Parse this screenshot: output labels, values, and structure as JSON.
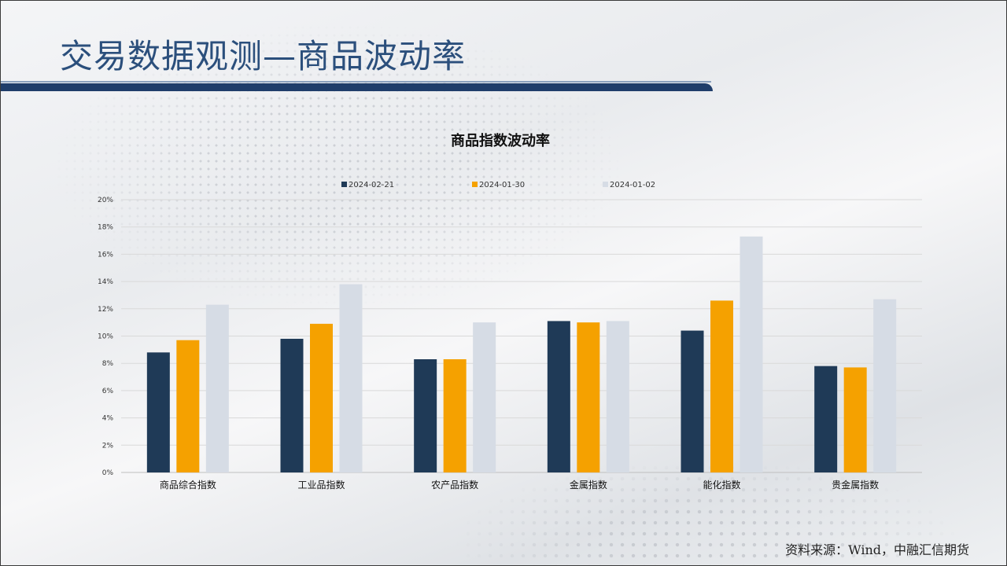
{
  "slide": {
    "title": "交易数据观测—商品波动率",
    "source": "资料来源：Wind，中融汇信期货"
  },
  "colors": {
    "series": [
      "#1f3a57",
      "#f5a100",
      "#d6dce5"
    ],
    "title": "#2b4f7c",
    "title_bar": "#1f3d6a"
  },
  "chart_data": {
    "type": "bar",
    "title": "商品指数波动率",
    "categories": [
      "商品综合指数",
      "工业品指数",
      "农产品指数",
      "金属指数",
      "能化指数",
      "贵金属指数"
    ],
    "series": [
      {
        "name": "2024-02-21",
        "values": [
          8.8,
          9.8,
          8.3,
          11.1,
          10.4,
          7.8
        ]
      },
      {
        "name": "2024-01-30",
        "values": [
          9.7,
          10.9,
          8.3,
          11.0,
          12.6,
          7.7
        ]
      },
      {
        "name": "2024-01-02",
        "values": [
          12.3,
          13.8,
          11.0,
          11.1,
          17.3,
          12.7
        ]
      }
    ],
    "yticks": [
      "0%",
      "2%",
      "4%",
      "6%",
      "8%",
      "10%",
      "12%",
      "14%",
      "16%",
      "18%",
      "20%"
    ],
    "ylim": [
      0,
      20
    ],
    "grid": true,
    "legend_position": "top"
  }
}
